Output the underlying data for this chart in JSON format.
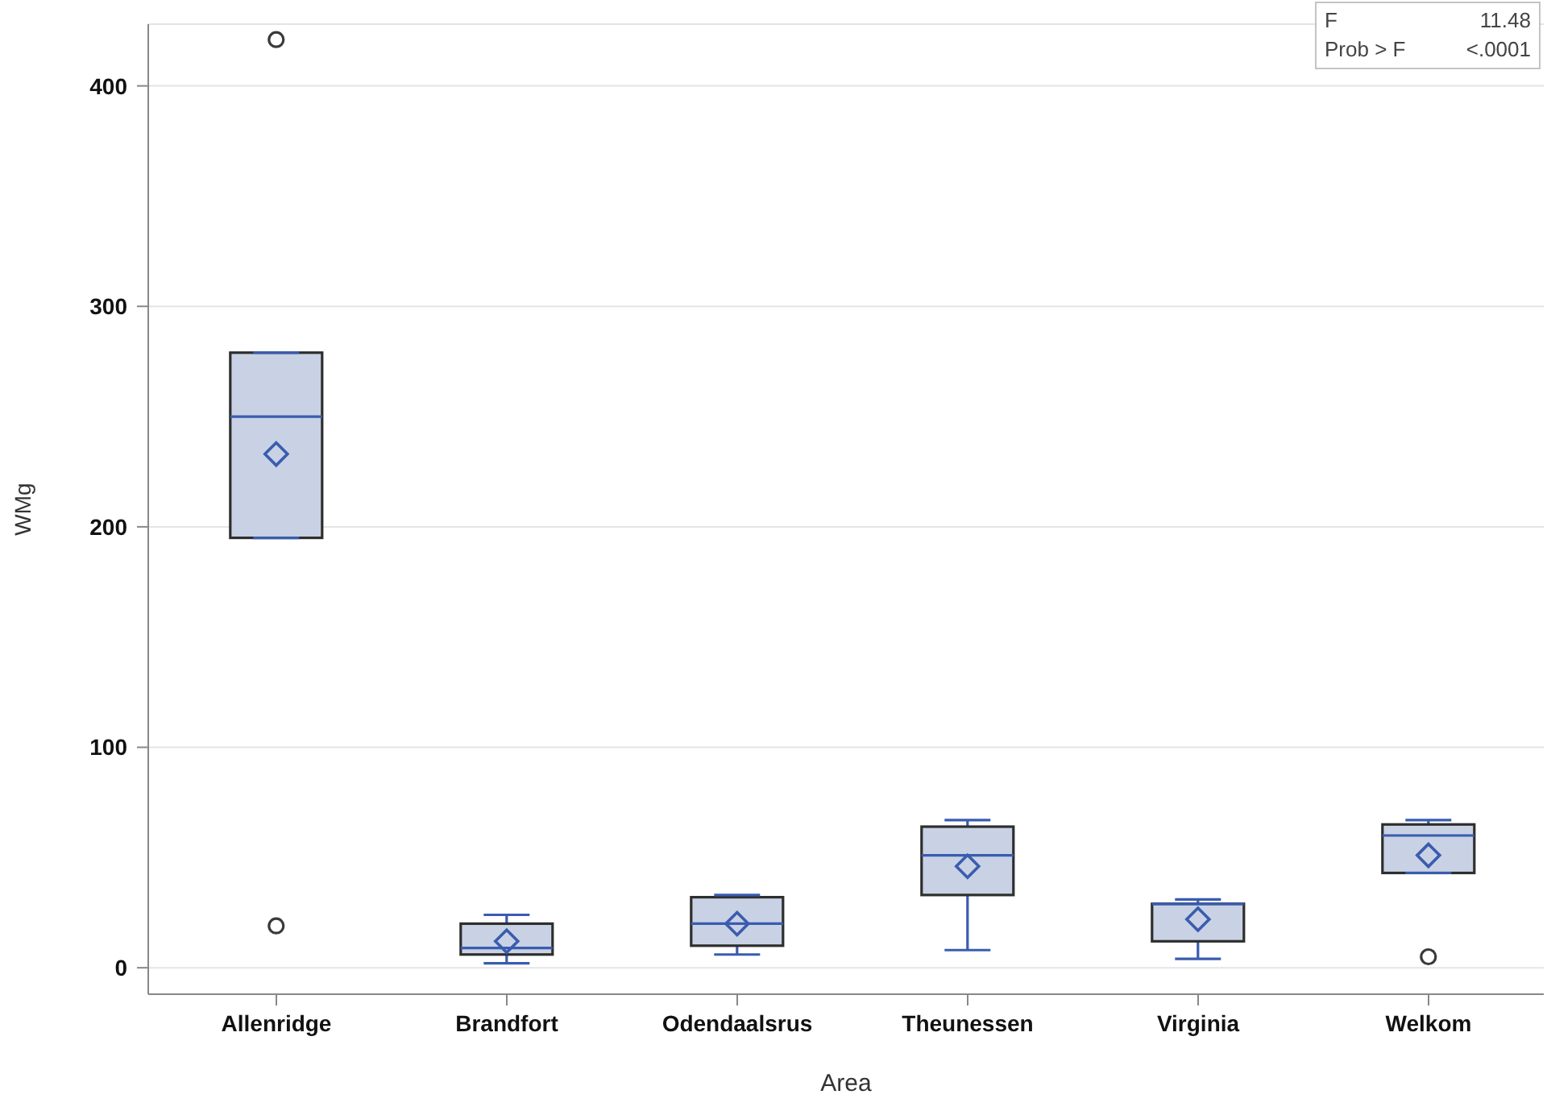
{
  "chart_data": {
    "type": "box",
    "xlabel": "Area",
    "ylabel": "WMg",
    "categories": [
      "Allenridge",
      "Brandfort",
      "Odendaalsrus",
      "Theunessen",
      "Virginia",
      "Welkom"
    ],
    "boxes": [
      {
        "low": 195,
        "q1": 195,
        "median": 250,
        "q3": 279,
        "high": 279,
        "mean": 233,
        "outliers": [
          421,
          19
        ]
      },
      {
        "low": 2,
        "q1": 6,
        "median": 9,
        "q3": 20,
        "high": 24,
        "mean": 12
      },
      {
        "low": 6,
        "q1": 10,
        "median": 20,
        "q3": 32,
        "high": 33,
        "mean": 20
      },
      {
        "low": 8,
        "q1": 33,
        "median": 51,
        "q3": 64,
        "high": 67,
        "mean": 46
      },
      {
        "low": 4,
        "q1": 12,
        "median": 29,
        "q3": 29,
        "high": 31,
        "mean": 22
      },
      {
        "low": 43,
        "q1": 43,
        "median": 60,
        "q3": 65,
        "high": 67,
        "mean": 51,
        "outliers": [
          5
        ]
      }
    ],
    "color": "#c8d2e4",
    "ylim": [
      -12,
      428
    ],
    "yticks": [
      0,
      100,
      200,
      300,
      400
    ],
    "grid": "y",
    "annotations": [
      "F",
      "11.48",
      "Prob > F",
      "<.0001"
    ]
  }
}
